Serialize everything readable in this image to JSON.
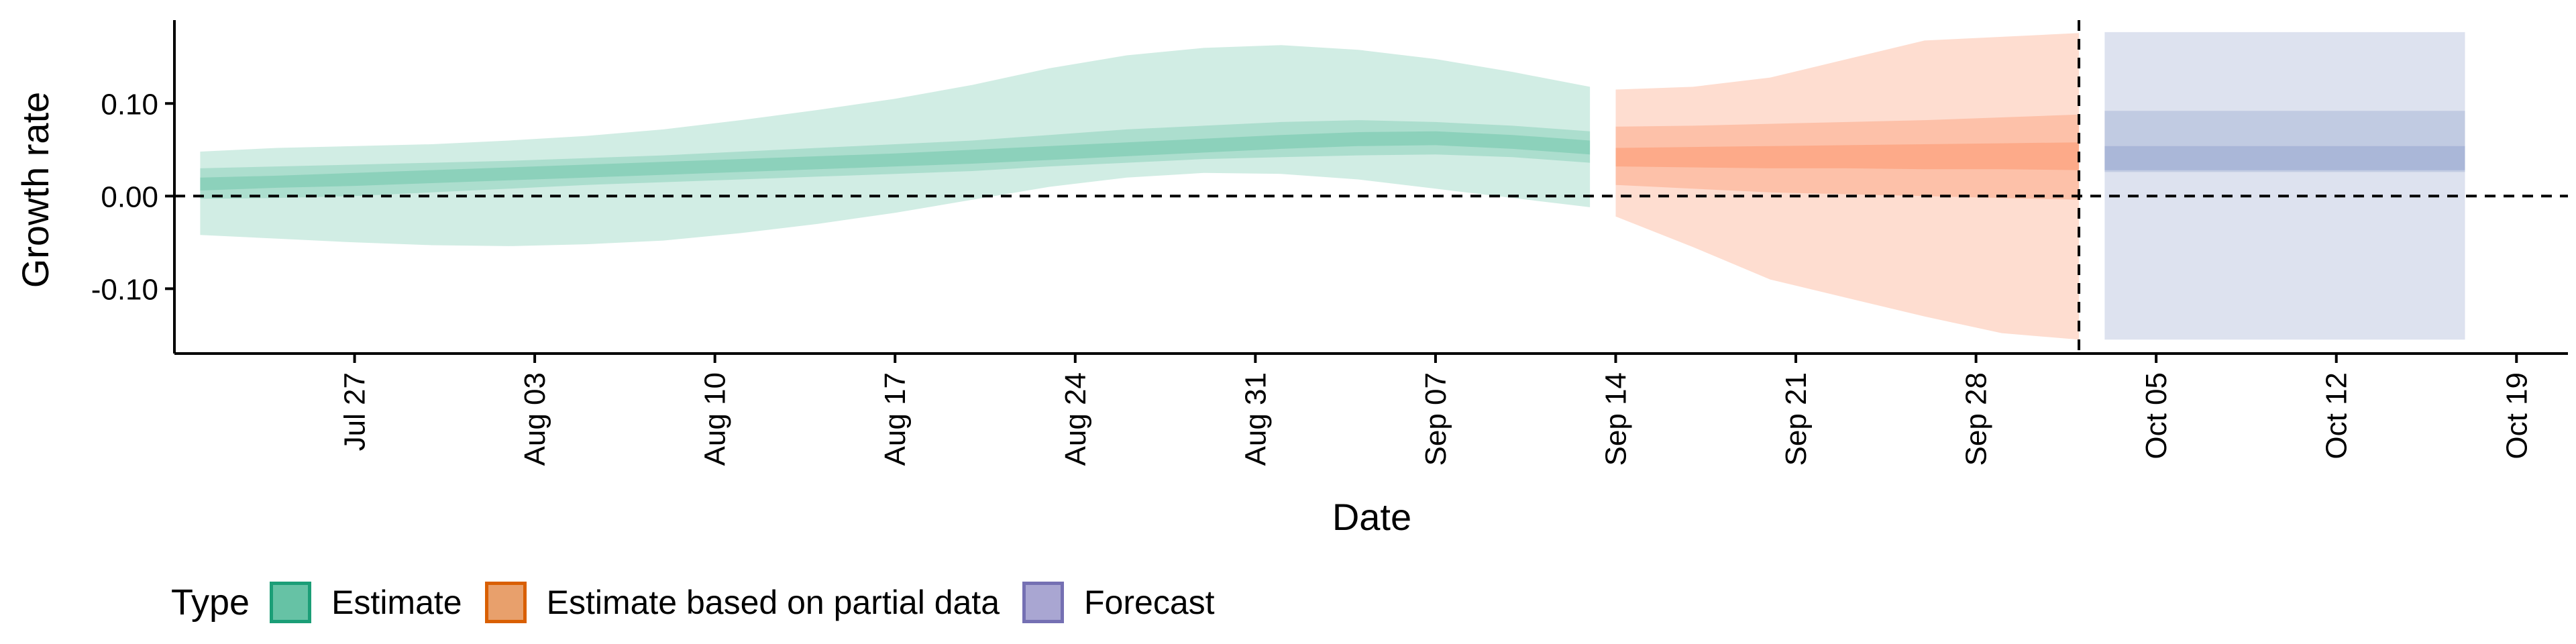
{
  "chart_data": {
    "type": "area",
    "xlabel": "Date",
    "ylabel": "Growth rate",
    "ylim": [
      -0.17,
      0.19
    ],
    "y_ticks": [
      -0.1,
      0.0,
      0.1
    ],
    "y_tick_labels": [
      "-0.10",
      "0.00",
      "0.10"
    ],
    "x_tick_labels": [
      "Jul 27",
      "Aug 03",
      "Aug 10",
      "Aug 17",
      "Aug 24",
      "Aug 31",
      "Sep 07",
      "Sep 14",
      "Sep 21",
      "Sep 28",
      "Oct 05",
      "Oct 12",
      "Oct 19"
    ],
    "x_tick_dates": [
      "2020-07-27",
      "2020-08-03",
      "2020-08-10",
      "2020-08-17",
      "2020-08-24",
      "2020-08-31",
      "2020-09-07",
      "2020-09-14",
      "2020-09-21",
      "2020-09-28",
      "2020-10-05",
      "2020-10-12",
      "2020-10-19"
    ],
    "xlim": [
      "2020-07-20",
      "2020-10-21"
    ],
    "reference_lines": {
      "horizontal_y": 0.0,
      "vertical_date": "2020-10-02",
      "style": "dashed"
    },
    "grid": false,
    "legend": {
      "title": "Type",
      "position": "bottom-left"
    },
    "series": [
      {
        "name": "Estimate",
        "color": "#1b9e77",
        "fill": "#66c2a5",
        "dates": [
          "2020-07-21",
          "2020-07-24",
          "2020-07-27",
          "2020-07-30",
          "2020-08-02",
          "2020-08-05",
          "2020-08-08",
          "2020-08-11",
          "2020-08-14",
          "2020-08-17",
          "2020-08-20",
          "2020-08-23",
          "2020-08-26",
          "2020-08-29",
          "2020-09-01",
          "2020-09-04",
          "2020-09-07",
          "2020-09-10",
          "2020-09-13"
        ],
        "median": [
          0.012,
          0.015,
          0.018,
          0.021,
          0.024,
          0.027,
          0.03,
          0.033,
          0.036,
          0.039,
          0.042,
          0.046,
          0.05,
          0.054,
          0.058,
          0.061,
          0.062,
          0.058,
          0.052
        ],
        "lower_90": [
          -0.042,
          -0.046,
          -0.05,
          -0.053,
          -0.054,
          -0.052,
          -0.048,
          -0.04,
          -0.03,
          -0.018,
          -0.004,
          0.01,
          0.02,
          0.025,
          0.024,
          0.018,
          0.008,
          -0.002,
          -0.012
        ],
        "upper_90": [
          0.048,
          0.052,
          0.054,
          0.056,
          0.06,
          0.065,
          0.072,
          0.082,
          0.093,
          0.105,
          0.12,
          0.138,
          0.152,
          0.16,
          0.163,
          0.158,
          0.148,
          0.134,
          0.118
        ],
        "lower_50": [
          -0.003,
          -0.002,
          0.0,
          0.004,
          0.008,
          0.012,
          0.015,
          0.018,
          0.021,
          0.024,
          0.027,
          0.032,
          0.036,
          0.04,
          0.042,
          0.044,
          0.045,
          0.042,
          0.036
        ],
        "upper_50": [
          0.03,
          0.032,
          0.034,
          0.036,
          0.038,
          0.041,
          0.044,
          0.048,
          0.052,
          0.056,
          0.06,
          0.066,
          0.072,
          0.076,
          0.08,
          0.082,
          0.08,
          0.076,
          0.07
        ],
        "lower_20": [
          0.006,
          0.009,
          0.011,
          0.014,
          0.017,
          0.02,
          0.023,
          0.026,
          0.029,
          0.032,
          0.035,
          0.039,
          0.043,
          0.047,
          0.051,
          0.054,
          0.055,
          0.051,
          0.045
        ],
        "upper_20": [
          0.02,
          0.022,
          0.025,
          0.028,
          0.031,
          0.034,
          0.037,
          0.04,
          0.043,
          0.046,
          0.05,
          0.054,
          0.058,
          0.062,
          0.066,
          0.069,
          0.07,
          0.066,
          0.06
        ]
      },
      {
        "name": "Estimate based on partial data",
        "color": "#d95f02",
        "fill": "#fc8d62",
        "dates": [
          "2020-09-14",
          "2020-09-17",
          "2020-09-20",
          "2020-09-23",
          "2020-09-26",
          "2020-09-29",
          "2020-10-02"
        ],
        "median": [
          0.042,
          0.042,
          0.042,
          0.043,
          0.043,
          0.043,
          0.043
        ],
        "lower_90": [
          -0.022,
          -0.055,
          -0.09,
          -0.11,
          -0.13,
          -0.148,
          -0.155
        ],
        "upper_90": [
          0.115,
          0.118,
          0.128,
          0.148,
          0.168,
          0.172,
          0.176
        ],
        "lower_50": [
          0.012,
          0.008,
          0.004,
          0.002,
          0.0,
          -0.002,
          -0.004
        ],
        "upper_50": [
          0.075,
          0.076,
          0.078,
          0.08,
          0.082,
          0.085,
          0.088
        ],
        "lower_20": [
          0.032,
          0.031,
          0.03,
          0.03,
          0.029,
          0.029,
          0.028
        ],
        "upper_20": [
          0.052,
          0.053,
          0.054,
          0.055,
          0.056,
          0.057,
          0.058
        ]
      },
      {
        "name": "Forecast",
        "color": "#7570b3",
        "fill": "#8da0cb",
        "dates": [
          "2020-10-03",
          "2020-10-17"
        ],
        "median": [
          0.042,
          0.042
        ],
        "lower_90": [
          -0.155,
          -0.155
        ],
        "upper_90": [
          0.177,
          0.177
        ],
        "lower_50": [
          0.026,
          0.026
        ],
        "upper_50": [
          0.092,
          0.092
        ],
        "lower_20": [
          0.028,
          0.028
        ],
        "upper_20": [
          0.054,
          0.054
        ]
      }
    ]
  },
  "legend": {
    "title": "Type",
    "items": [
      {
        "label": "Estimate",
        "color": "#1b9e77",
        "fill": "#66c2a5"
      },
      {
        "label": "Estimate based on partial data",
        "color": "#d95f02",
        "fill": "#e8a06c"
      },
      {
        "label": "Forecast",
        "color": "#7570b3",
        "fill": "#a9a6d2"
      }
    ]
  }
}
